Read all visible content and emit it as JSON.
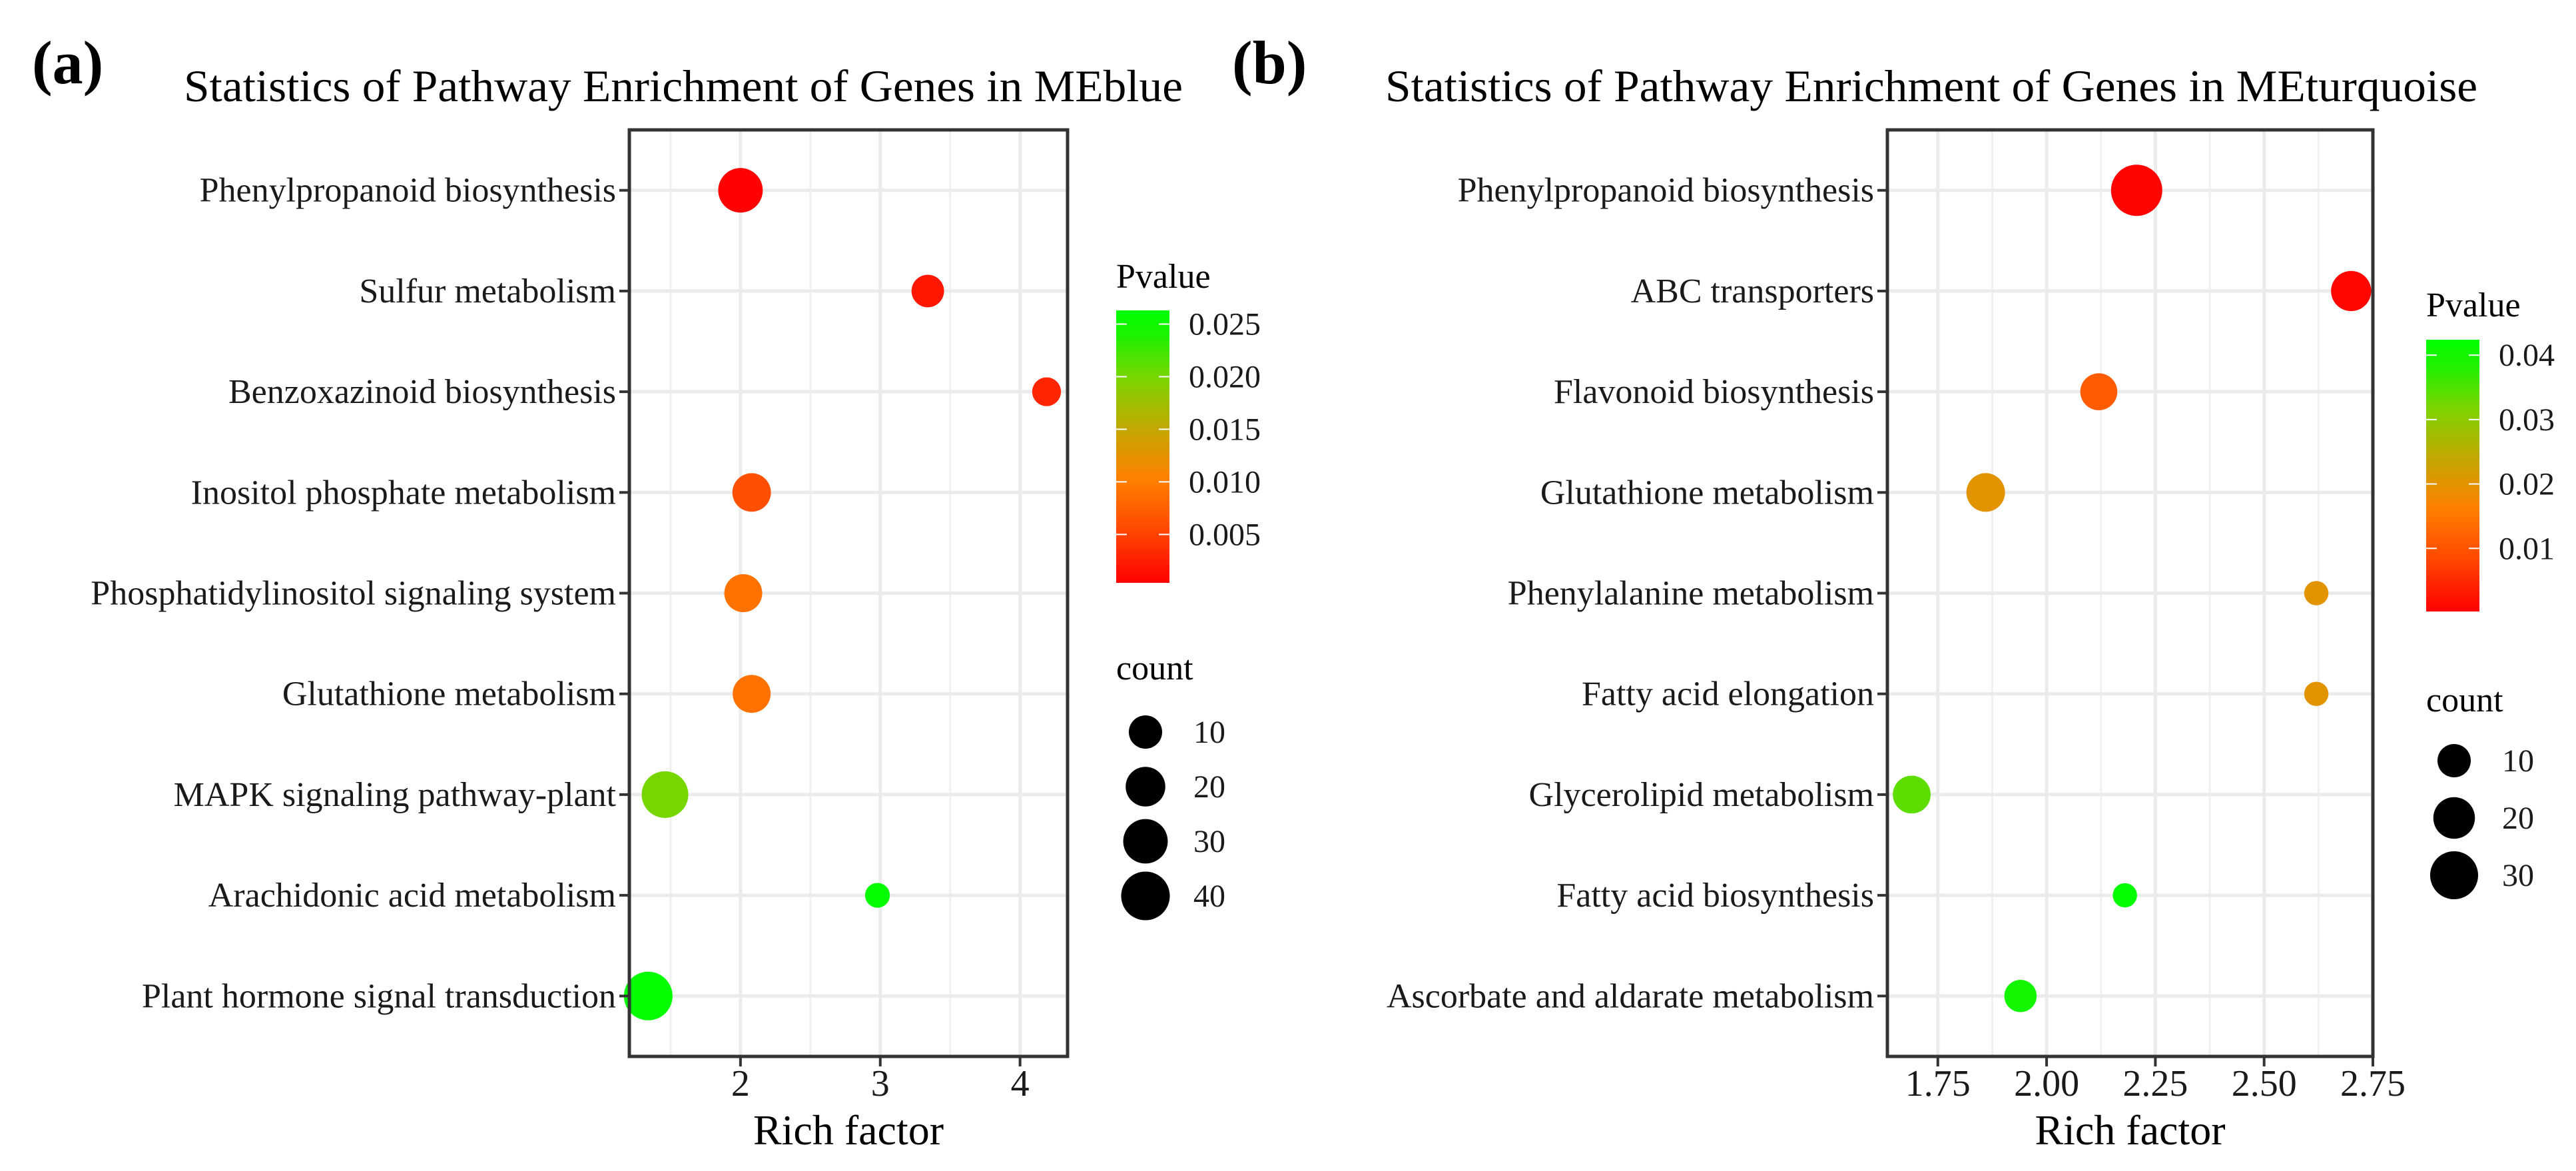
{
  "color_scale": {
    "low": "#FF0000",
    "high": "#00FF00"
  },
  "chart_data": [
    {
      "type": "scatter",
      "panel_tag": "(a)",
      "title": "Statistics of Pathway Enrichment of Genes in MEblue",
      "xlabel": "Rich factor",
      "ylabel": "",
      "xlim": [
        1.205,
        4.34
      ],
      "xticks": [
        "2",
        "3",
        "4"
      ],
      "grid": true,
      "categories": [
        "Phenylpropanoid biosynthesis",
        "Sulfur metabolism",
        "Benzoxazinoid biosynthesis",
        "Inositol phosphate metabolism",
        "Phosphatidylinositol signaling system",
        "Glutathione metabolism",
        "MAPK signaling pathway-plant",
        "Arachidonic acid metabolism",
        "Plant hormone signal transduction"
      ],
      "rich_factor": [
        2.0,
        3.34,
        4.19,
        2.08,
        2.02,
        2.08,
        1.46,
        2.98,
        1.34
      ],
      "pvalue": [
        0.0005,
        0.002,
        0.003,
        0.006,
        0.009,
        0.009,
        0.02,
        0.026,
        0.026
      ],
      "count": [
        30,
        9,
        5,
        18,
        17,
        17,
        35,
        2,
        40
      ],
      "color_legend": {
        "title": "Pvalue",
        "range": [
          0.0004,
          0.0263
        ],
        "ticks": [
          "0.025",
          "0.020",
          "0.015",
          "0.010",
          "0.005"
        ],
        "position": "right"
      },
      "size_legend": {
        "title": "count",
        "values": [
          "10",
          "20",
          "30",
          "40"
        ],
        "position": "right"
      }
    },
    {
      "type": "scatter",
      "panel_tag": "(b)",
      "title": "Statistics of Pathway Enrichment of Genes in MEturquoise",
      "xlabel": "Rich factor",
      "ylabel": "",
      "xlim": [
        1.634,
        2.75
      ],
      "xticks": [
        "1.75",
        "2.00",
        "2.25",
        "2.50",
        "2.75"
      ],
      "grid": true,
      "categories": [
        "Phenylpropanoid biosynthesis",
        "ABC transporters",
        "Flavonoid biosynthesis",
        "Glutathione metabolism",
        "Phenylalanine metabolism",
        "Fatty acid elongation",
        "Glycerolipid metabolism",
        "Fatty acid biosynthesis",
        "Ascorbate and aldarate metabolism"
      ],
      "rich_factor": [
        2.207,
        2.7,
        2.12,
        1.86,
        2.62,
        2.62,
        1.69,
        2.18,
        1.94
      ],
      "pvalue": [
        0.0005,
        0.001,
        0.011,
        0.02,
        0.02,
        0.02,
        0.034,
        0.042,
        0.04
      ],
      "count": [
        36,
        18,
        14,
        16,
        3,
        3,
        15,
        3,
        9
      ],
      "color_legend": {
        "title": "Pvalue",
        "range": [
          0.0002,
          0.0424
        ],
        "ticks": [
          "0.04",
          "0.03",
          "0.02",
          "0.01"
        ],
        "position": "right"
      },
      "size_legend": {
        "title": "count",
        "values": [
          "10",
          "20",
          "30"
        ],
        "position": "right"
      }
    }
  ]
}
